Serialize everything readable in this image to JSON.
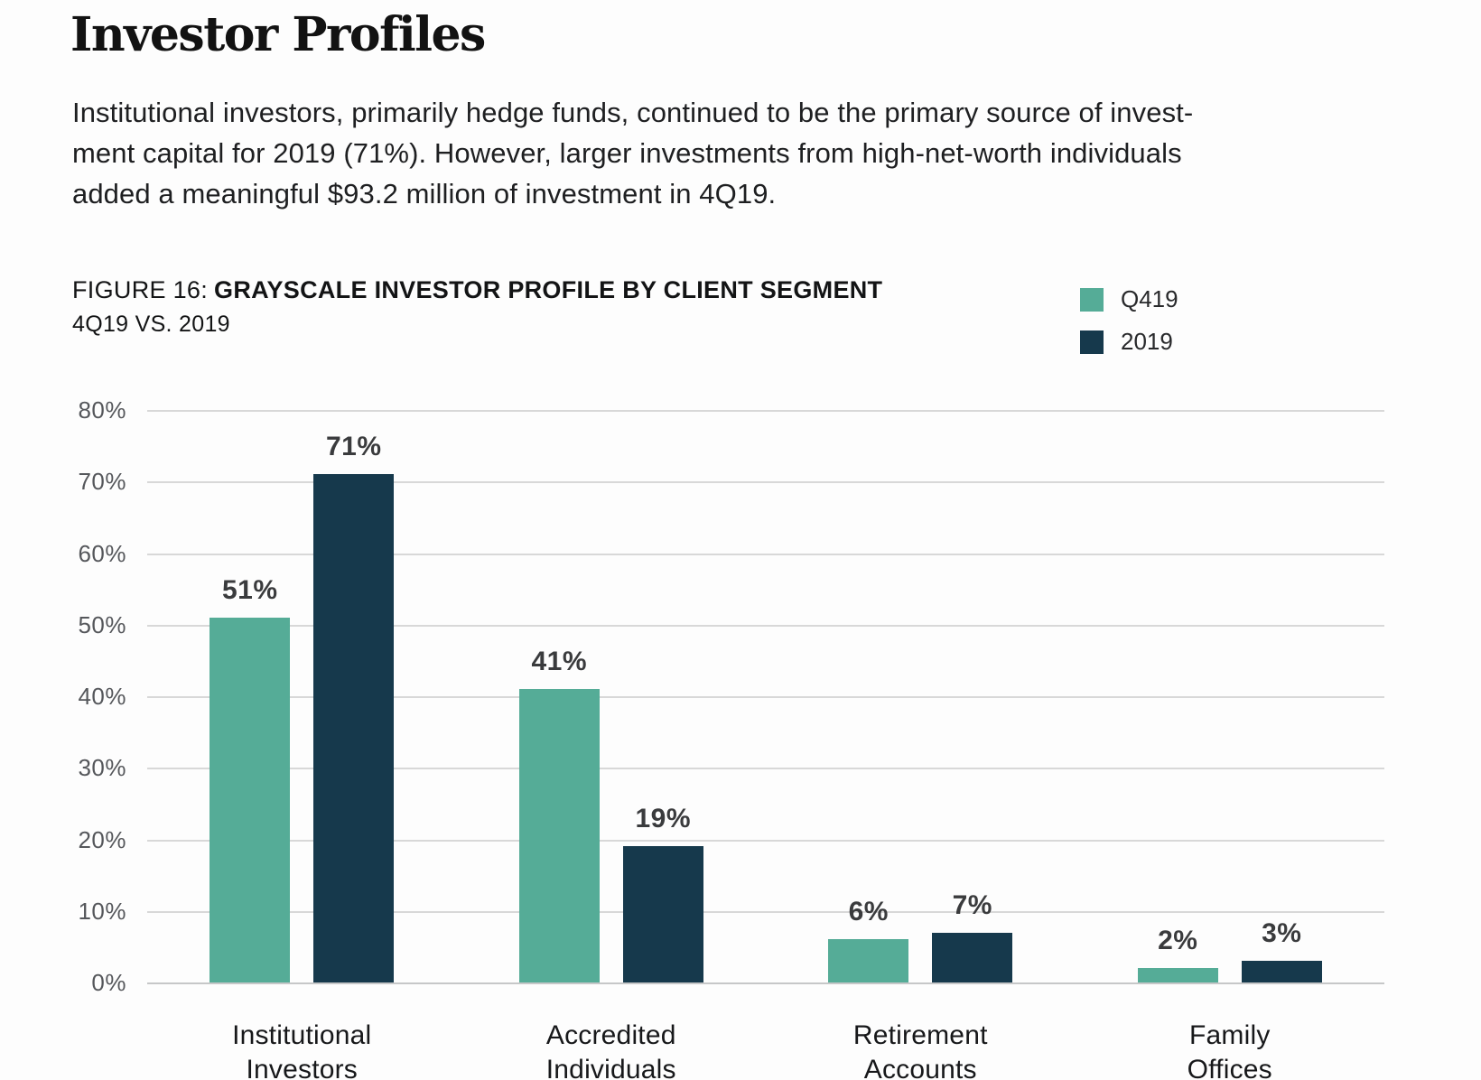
{
  "page": {
    "title": "Investor Profiles",
    "paragraph": "Institutional investors, primarily hedge funds, continued to be the primary source of invest-\nment capital for 2019 (71%). However, larger investments from high-net-worth individuals\nadded a meaningful $93.2 million of investment in 4Q19."
  },
  "figure": {
    "label_prefix": "FIGURE 16:",
    "title": "GRAYSCALE INVESTOR PROFILE BY CLIENT SEGMENT",
    "subtitle": "4Q19 VS. 2019"
  },
  "colors": {
    "teal": "#55ac97",
    "navy": "#16394c",
    "gridline": "#d8d8d8",
    "axis_text": "#55575b",
    "value_label": "#3a3b3d",
    "category_label": "#17181a"
  },
  "chart_data": {
    "type": "bar",
    "title": "GRAYSCALE INVESTOR PROFILE BY CLIENT SEGMENT",
    "subtitle": "4Q19 VS. 2019",
    "categories": [
      "Institutional\nInvestors",
      "Accredited\nIndividuals",
      "Retirement\nAccounts",
      "Family\nOffices"
    ],
    "series": [
      {
        "name": "Q419",
        "color": "#55ac97",
        "values": [
          51,
          41,
          6,
          2
        ]
      },
      {
        "name": "2019",
        "color": "#16394c",
        "values": [
          71,
          19,
          7,
          3
        ]
      }
    ],
    "value_suffix": "%",
    "ylabel": "",
    "xlabel": "",
    "ylim": [
      0,
      80
    ],
    "yticks": [
      "0%",
      "10%",
      "20%",
      "30%",
      "40%",
      "50%",
      "60%",
      "70%",
      "80%"
    ],
    "grid": true,
    "legend_position": "top-right"
  }
}
